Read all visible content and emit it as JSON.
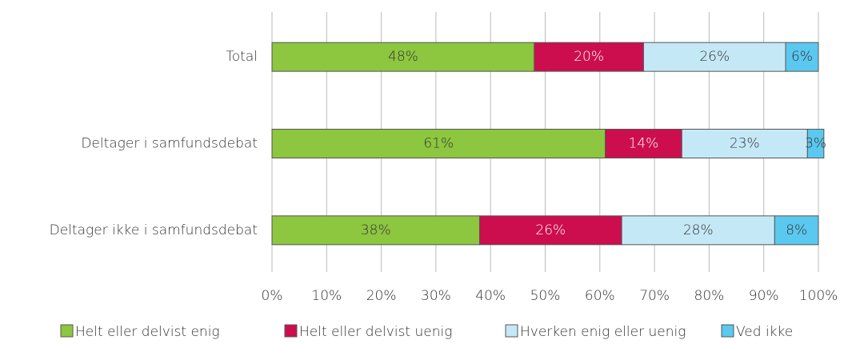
{
  "chart_data": {
    "type": "stacked-barh",
    "categories": [
      "Total",
      "Deltager i samfundsdebat",
      "Deltager ikke i samfundsdebat"
    ],
    "series": [
      {
        "name": "Helt eller delvist enig",
        "color": "#8dc63f",
        "text_color": "#333333",
        "values": [
          48,
          61,
          38
        ],
        "value_labels": [
          "48%",
          "61%",
          "38%"
        ]
      },
      {
        "name": "Helt eller delvist uenig",
        "color": "#cc0e4e",
        "text_color": "#ffffff",
        "values": [
          20,
          14,
          26
        ],
        "value_labels": [
          "20%",
          "14%",
          "26%"
        ]
      },
      {
        "name": "Hverken enig eller uenig",
        "color": "#c5e8f7",
        "text_color": "#333333",
        "values": [
          26,
          23,
          28
        ],
        "value_labels": [
          "26%",
          "23%",
          "28%"
        ]
      },
      {
        "name": "Ved ikke",
        "color": "#5bc8ef",
        "text_color": "#333333",
        "values": [
          6,
          3,
          8
        ],
        "value_labels": [
          "6%",
          "3%",
          "8%"
        ]
      }
    ],
    "xlim": [
      0,
      100
    ],
    "xticks": [
      {
        "value": 0,
        "label": "0%"
      },
      {
        "value": 10,
        "label": "10%"
      },
      {
        "value": 20,
        "label": "20%"
      },
      {
        "value": 30,
        "label": "30%"
      },
      {
        "value": 40,
        "label": "40%"
      },
      {
        "value": 50,
        "label": "50%"
      },
      {
        "value": 60,
        "label": "60%"
      },
      {
        "value": 70,
        "label": "70%"
      },
      {
        "value": 80,
        "label": "80%"
      },
      {
        "value": 90,
        "label": "90%"
      },
      {
        "value": 100,
        "label": "100%"
      }
    ],
    "grid": true,
    "legend": "bottom"
  }
}
